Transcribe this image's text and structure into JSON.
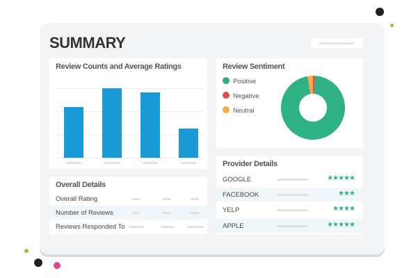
{
  "title": "SUMMARY",
  "colors": {
    "bar": "#1a9ad6",
    "positive": "#2fb283",
    "negative": "#e04e4e",
    "neutral": "#f7a94a"
  },
  "chart_data": {
    "type": "bar",
    "title": "Review Counts and Average Ratings",
    "categories": [
      "",
      "",
      "",
      ""
    ],
    "values": [
      73,
      100,
      94,
      42
    ],
    "ylim": [
      0,
      100
    ],
    "grid": true
  },
  "sentiment": {
    "title": "Review Sentiment",
    "items": [
      {
        "label": "Positive",
        "value": 96
      },
      {
        "label": "Negative",
        "value": 1.2
      },
      {
        "label": "Neutral",
        "value": 2.8
      }
    ]
  },
  "overall": {
    "title": "Overall Details",
    "rows": [
      "Overall Rating",
      "Number of Reviews",
      "Reviews Responded To"
    ]
  },
  "providers": {
    "title": "Provider Details",
    "rows": [
      {
        "name": "GOOGLE",
        "stars": "★★★★★",
        "rating": 5
      },
      {
        "name": "FACEBOOK",
        "stars": "★★★",
        "rating": 3
      },
      {
        "name": "YELP",
        "stars": "★★★★",
        "rating": 4
      },
      {
        "name": "APPLE",
        "stars": "★★★★★",
        "rating": 5
      }
    ]
  }
}
